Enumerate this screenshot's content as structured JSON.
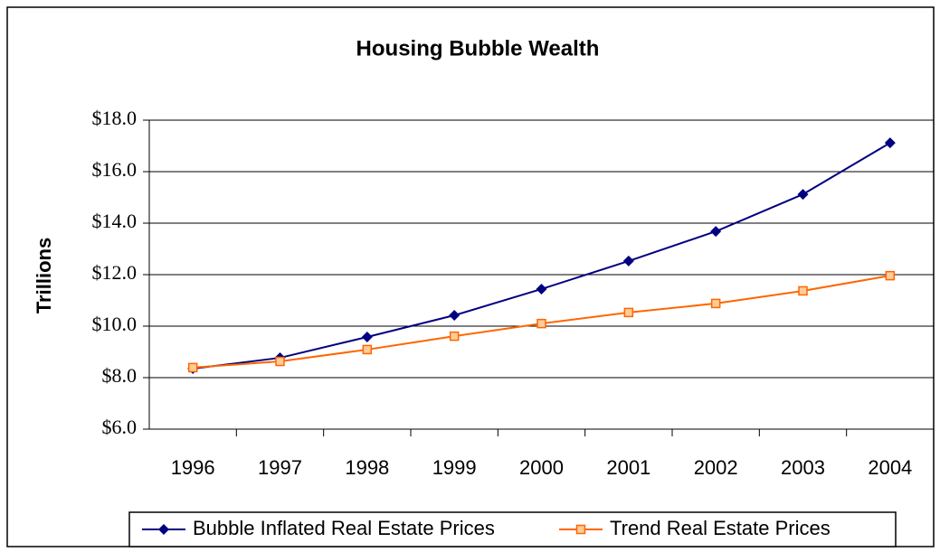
{
  "chart_data": {
    "type": "line",
    "title": "Housing Bubble Wealth",
    "y_label": "Trillions",
    "categories": [
      "1996",
      "1997",
      "1998",
      "1999",
      "2000",
      "2001",
      "2002",
      "2003",
      "2004"
    ],
    "series": [
      {
        "name": "Bubble Inflated Real Estate Prices",
        "color": "#000080",
        "marker": "diamond",
        "values": [
          8.35,
          8.77,
          9.58,
          10.42,
          11.44,
          12.53,
          13.68,
          15.12,
          17.12
        ]
      },
      {
        "name": "Trend Real Estate Prices",
        "color": "#ff6600",
        "marker": "square",
        "values": [
          8.39,
          8.63,
          9.09,
          9.61,
          10.1,
          10.53,
          10.88,
          11.37,
          11.96
        ]
      }
    ],
    "ylim": [
      6,
      18
    ],
    "yticks": [
      {
        "value": 6,
        "label": "$6.0"
      },
      {
        "value": 8,
        "label": "$8.0"
      },
      {
        "value": 10,
        "label": "$10.0"
      },
      {
        "value": 12,
        "label": "$12.0"
      },
      {
        "value": 14,
        "label": "$14.0"
      },
      {
        "value": 16,
        "label": "$16.0"
      },
      {
        "value": 18,
        "label": "$18.0"
      }
    ],
    "grid": true,
    "legend": "bottom"
  }
}
